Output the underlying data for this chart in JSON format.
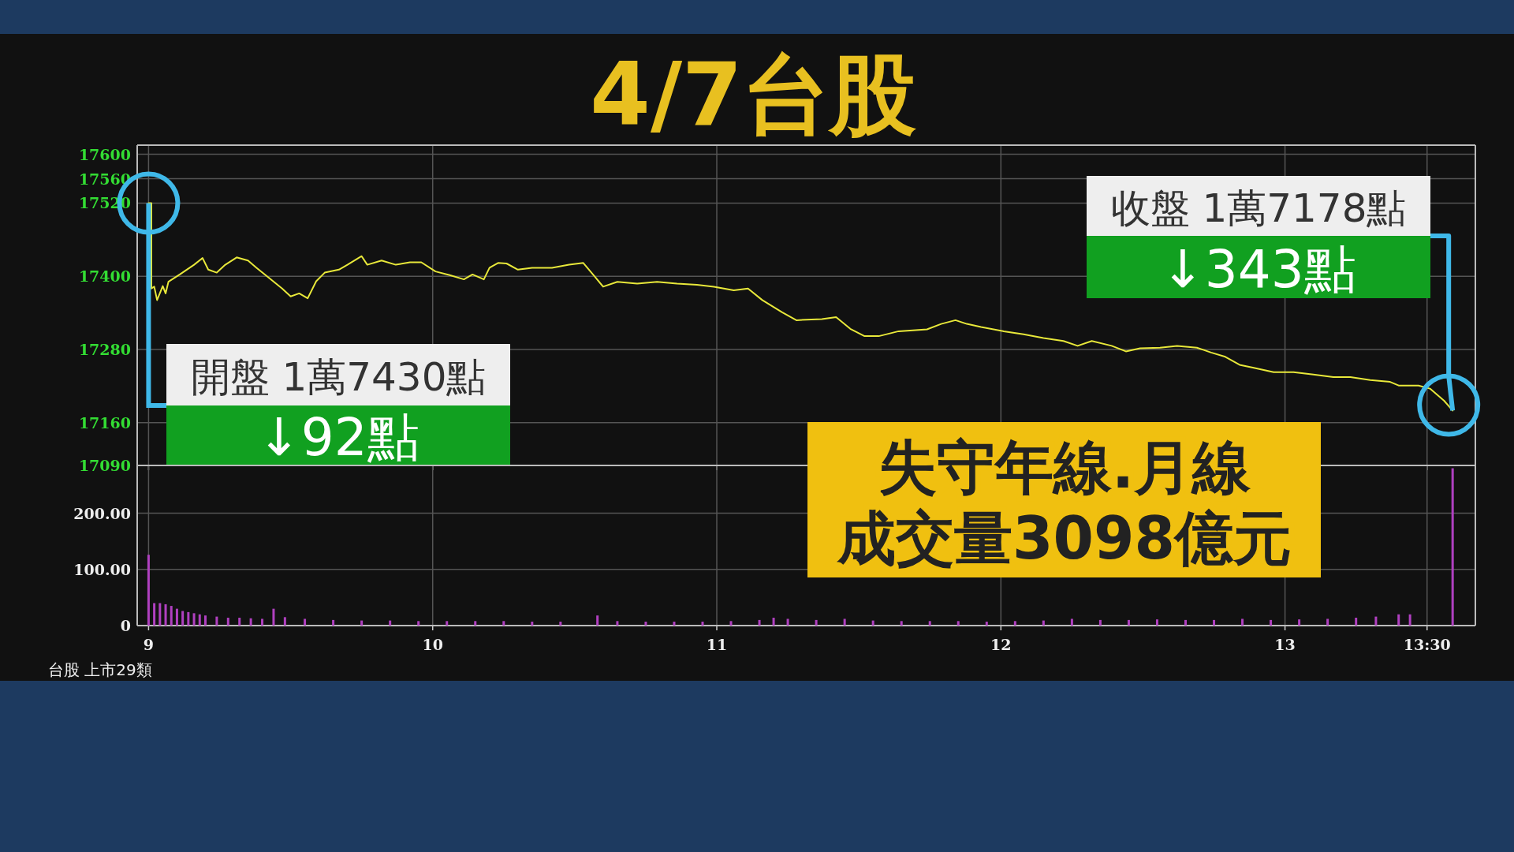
{
  "chart_data": [
    {
      "type": "line",
      "title": "4/7台股",
      "xlim": [
        8.96,
        13.67
      ],
      "ylim": [
        17090,
        17615
      ],
      "xticks": [
        9,
        10,
        11,
        12,
        13,
        13.5
      ],
      "yticks": [
        17090,
        17160,
        17280,
        17400,
        17520,
        17560,
        17600
      ],
      "tick_labels": "y",
      "grid": true,
      "series": [
        {
          "color": "#e8e83a",
          "x": [
            9.0,
            9.01,
            9.01,
            9.02,
            9.03,
            9.05,
            9.06,
            9.07,
            9.11,
            9.16,
            9.19,
            9.21,
            9.24,
            9.27,
            9.31,
            9.35,
            9.38,
            9.43,
            9.47,
            9.5,
            9.53,
            9.56,
            9.59,
            9.62,
            9.67,
            9.7,
            9.75,
            9.77,
            9.82,
            9.87,
            9.92,
            9.96,
            10.01,
            10.06,
            10.11,
            10.14,
            10.18,
            10.2,
            10.23,
            10.26,
            10.3,
            10.35,
            10.42,
            10.48,
            10.53,
            10.57,
            10.6,
            10.65,
            10.72,
            10.79,
            10.86,
            10.93,
            10.99,
            11.06,
            11.11,
            11.16,
            11.23,
            11.28,
            11.37,
            11.42,
            11.47,
            11.52,
            11.57,
            11.64,
            11.74,
            11.79,
            11.84,
            11.88,
            11.93,
            12.01,
            12.08,
            12.15,
            12.22,
            12.27,
            12.32,
            12.39,
            12.44,
            12.49,
            12.56,
            12.62,
            12.69,
            12.74,
            12.79,
            12.84,
            12.89,
            12.96,
            13.03,
            13.1,
            13.17,
            13.23,
            13.3,
            13.37,
            13.4,
            13.47,
            13.51,
            13.56,
            13.59
          ],
          "values": [
            17520,
            17520,
            17380,
            17383,
            17361,
            17384,
            17372,
            17391,
            17403,
            17419,
            17430,
            17411,
            17406,
            17419,
            17431,
            17426,
            17414,
            17395,
            17380,
            17367,
            17372,
            17364,
            17392,
            17406,
            17411,
            17419,
            17433,
            17419,
            17426,
            17419,
            17423,
            17423,
            17408,
            17402,
            17395,
            17403,
            17395,
            17414,
            17422,
            17421,
            17411,
            17414,
            17414,
            17419,
            17422,
            17400,
            17383,
            17391,
            17388,
            17391,
            17388,
            17386,
            17383,
            17377,
            17380,
            17361,
            17341,
            17328,
            17330,
            17333,
            17314,
            17302,
            17302,
            17310,
            17313,
            17322,
            17328,
            17322,
            17317,
            17310,
            17305,
            17299,
            17294,
            17286,
            17294,
            17286,
            17277,
            17282,
            17283,
            17286,
            17283,
            17275,
            17268,
            17255,
            17250,
            17243,
            17243,
            17239,
            17235,
            17235,
            17230,
            17227,
            17221,
            17221,
            17216,
            17196,
            17180
          ]
        }
      ],
      "annotations": [
        {
          "text": "開盤 1萬7430點",
          "x": 9.0,
          "y": 17520
        },
        "↓92點",
        {
          "text": "收盤 1萬7178點",
          "x": 13.59,
          "y": 17180
        },
        "↓343點",
        "失守年線.月線",
        "成交量3098億元",
        "台股 上市29類"
      ]
    },
    {
      "type": "bar",
      "xlim": [
        8.96,
        13.67
      ],
      "ylim": [
        0,
        285
      ],
      "xticks": [
        9,
        10,
        11,
        12,
        13,
        {
          "value": 13.5,
          "label": "13:30"
        }
      ],
      "yticks": [
        {
          "value": 0,
          "label": "0"
        },
        {
          "value": 100,
          "label": "100.00"
        },
        {
          "value": 200,
          "label": "200.00"
        }
      ],
      "grid": true,
      "series": [
        {
          "color": "#b040c0",
          "x": [
            9.0,
            9.02,
            9.04,
            9.06,
            9.08,
            9.1,
            9.12,
            9.14,
            9.16,
            9.18,
            9.2,
            9.24,
            9.28,
            9.32,
            9.36,
            9.4,
            9.44,
            9.48,
            9.55,
            9.65,
            9.75,
            9.85,
            9.95,
            10.05,
            10.15,
            10.25,
            10.35,
            10.45,
            10.58,
            10.65,
            10.75,
            10.85,
            10.95,
            11.05,
            11.15,
            11.2,
            11.25,
            11.35,
            11.45,
            11.55,
            11.65,
            11.75,
            11.85,
            11.95,
            12.05,
            12.15,
            12.25,
            12.35,
            12.45,
            12.55,
            12.65,
            12.75,
            12.85,
            12.95,
            13.05,
            13.15,
            13.25,
            13.32,
            13.4,
            13.44,
            13.59
          ],
          "values": [
            126,
            40,
            40,
            38,
            35,
            30,
            26,
            24,
            22,
            20,
            18,
            16,
            14,
            14,
            13,
            12,
            30,
            15,
            12,
            10,
            9,
            9,
            8,
            8,
            8,
            8,
            7,
            7,
            18,
            8,
            7,
            7,
            7,
            8,
            10,
            14,
            12,
            10,
            12,
            9,
            8,
            8,
            8,
            7,
            8,
            9,
            12,
            10,
            10,
            11,
            10,
            10,
            12,
            10,
            11,
            12,
            14,
            16,
            20,
            20,
            280
          ]
        }
      ]
    }
  ]
}
